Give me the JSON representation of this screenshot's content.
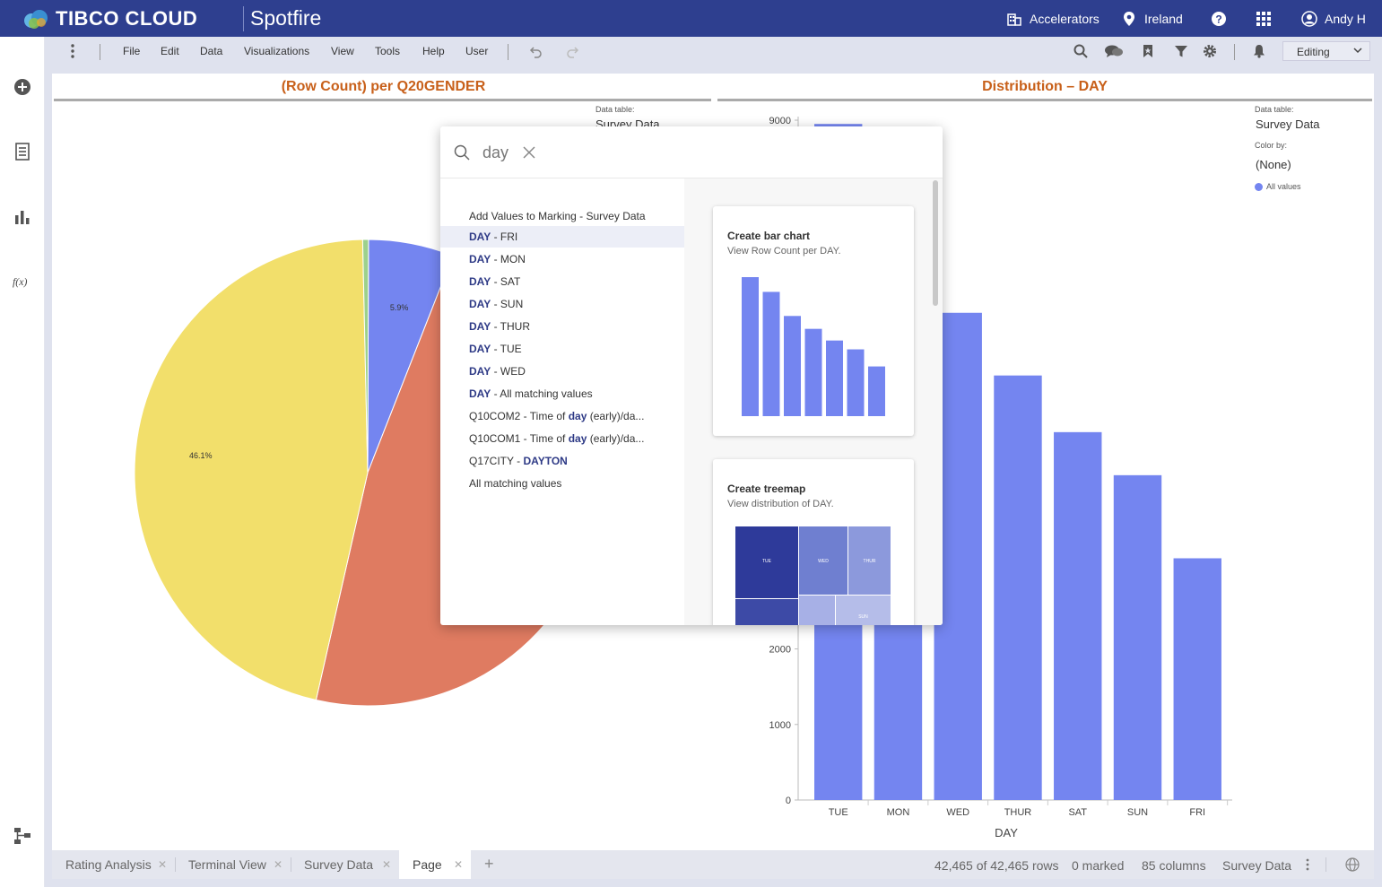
{
  "header": {
    "brand": "TIBCO CLOUD",
    "product": "Spotfire",
    "accelerators": "Accelerators",
    "region": "Ireland",
    "user": "Andy H"
  },
  "menu": {
    "items": [
      "File",
      "Edit",
      "Data",
      "Visualizations",
      "View",
      "Tools",
      "Help",
      "User"
    ],
    "mode": "Editing"
  },
  "pie_viz": {
    "title": "(Row Count) per Q20GENDER",
    "data_table_label": "Data table:",
    "data_table_value": "Survey Data",
    "chart_data": {
      "type": "pie",
      "slices": [
        {
          "value": 5.9,
          "label": "5.9%",
          "color": "#7485f0"
        },
        {
          "value": 47.6,
          "label": "",
          "color": "#df7b61"
        },
        {
          "value": 46.1,
          "label": "46.1%",
          "color": "#f2df6b"
        },
        {
          "value": 0.4,
          "label": "",
          "color": "#9dd18c"
        }
      ]
    }
  },
  "bar_viz": {
    "title": "Distribution – DAY",
    "data_table_label": "Data table:",
    "data_table_value": "Survey Data",
    "color_by_label": "Color by:",
    "color_by_value": "(None)",
    "legend_item": "All values",
    "chart_data": {
      "type": "bar",
      "categories": [
        "TUE",
        "MON",
        "WED",
        "THUR",
        "SAT",
        "SUN",
        "FRI"
      ],
      "values": [
        8950,
        8000,
        6450,
        5620,
        4870,
        4300,
        3200
      ],
      "xlabel": "DAY",
      "ylabel": "",
      "ylim": [
        0,
        9000
      ],
      "yticks_visible": [
        "0",
        "1000",
        "2000",
        "9000"
      ],
      "color": "#7485f0"
    }
  },
  "popup": {
    "search_value": "day",
    "results_header": "Add Values to Marking - Survey Data",
    "results": [
      {
        "prefix": "",
        "match": "DAY",
        "suffix": " - FRI",
        "selected": true
      },
      {
        "prefix": "",
        "match": "DAY",
        "suffix": " - MON",
        "selected": false
      },
      {
        "prefix": "",
        "match": "DAY",
        "suffix": " - SAT",
        "selected": false
      },
      {
        "prefix": "",
        "match": "DAY",
        "suffix": " - SUN",
        "selected": false
      },
      {
        "prefix": "",
        "match": "DAY",
        "suffix": " - THUR",
        "selected": false
      },
      {
        "prefix": "",
        "match": "DAY",
        "suffix": " - TUE",
        "selected": false
      },
      {
        "prefix": "",
        "match": "DAY",
        "suffix": " - WED",
        "selected": false
      },
      {
        "prefix": "",
        "match": "DAY",
        "suffix": " - All matching values",
        "selected": false
      },
      {
        "prefix": "Q10COM2 - Time of ",
        "match": "day",
        "suffix": " (early)/da...",
        "selected": false
      },
      {
        "prefix": "Q10COM1 - Time of ",
        "match": "day",
        "suffix": " (early)/da...",
        "selected": false
      },
      {
        "prefix": "Q17CITY - ",
        "match": "DAYTON",
        "suffix": "",
        "selected": false
      },
      {
        "prefix": "All matching values",
        "match": "",
        "suffix": "",
        "selected": false
      }
    ],
    "bar_card": {
      "title": "Create bar chart",
      "subtitle": "View Row Count per DAY.",
      "preview_values": [
        8950,
        8000,
        6450,
        5620,
        4870,
        4300,
        3200
      ]
    },
    "treemap_card": {
      "title": "Create treemap",
      "subtitle": "View distribution of DAY.",
      "cells": [
        {
          "label": "TUE",
          "color": "#2e3a9a"
        },
        {
          "label": "WED",
          "color": "#6f7fd0"
        },
        {
          "label": "THUR",
          "color": "#8c99dc"
        },
        {
          "label": "",
          "color": "#3d4aa6"
        },
        {
          "label": "",
          "color": "#a7b0e6"
        },
        {
          "label": "SUN",
          "color": "#b5bde9"
        }
      ]
    }
  },
  "tabs": [
    {
      "label": "Rating Analysis",
      "active": false
    },
    {
      "label": "Terminal View",
      "active": false
    },
    {
      "label": "Survey Data",
      "active": false
    },
    {
      "label": "Page",
      "active": true
    }
  ],
  "status": {
    "rows": "42,465 of 42,465 rows",
    "marked": "0 marked",
    "columns": "85 columns",
    "table": "Survey Data"
  },
  "colors": {
    "header_bg": "#2e3f8f",
    "title_orange": "#c8601a",
    "bar_blue": "#7485f0",
    "match_blue": "#2e3a86"
  }
}
